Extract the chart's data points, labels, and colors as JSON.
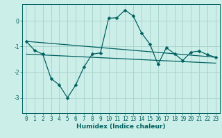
{
  "xlabel": "Humidex (Indice chaleur)",
  "bg_color": "#cceee8",
  "grid_color": "#aad4ce",
  "line_color": "#006060",
  "xlim": [
    -0.5,
    23.5
  ],
  "ylim": [
    -3.6,
    0.65
  ],
  "yticks": [
    0,
    -1,
    -2,
    -3
  ],
  "xticks": [
    0,
    1,
    2,
    3,
    4,
    5,
    6,
    7,
    8,
    9,
    10,
    11,
    12,
    13,
    14,
    15,
    16,
    17,
    18,
    19,
    20,
    21,
    22,
    23
  ],
  "series1_x": [
    0,
    1,
    2,
    3,
    4,
    5,
    6,
    7,
    8,
    9,
    10,
    11,
    12,
    13,
    14,
    15,
    16,
    17,
    18,
    19,
    20,
    21,
    22,
    23
  ],
  "series1_y": [
    -0.8,
    -1.15,
    -1.3,
    -2.25,
    -2.5,
    -3.0,
    -2.5,
    -1.8,
    -1.3,
    -1.25,
    0.1,
    0.12,
    0.42,
    0.18,
    -0.48,
    -0.9,
    -1.7,
    -1.05,
    -1.28,
    -1.55,
    -1.22,
    -1.18,
    -1.32,
    -1.42
  ],
  "series2_x": [
    0,
    23
  ],
  "series2_y": [
    -0.8,
    -1.42
  ],
  "series3_x": [
    0,
    23
  ],
  "series3_y": [
    -1.3,
    -1.65
  ],
  "marker_size": 2.5,
  "line_width": 0.9,
  "tick_fontsize": 5.5,
  "label_fontsize": 6.5
}
